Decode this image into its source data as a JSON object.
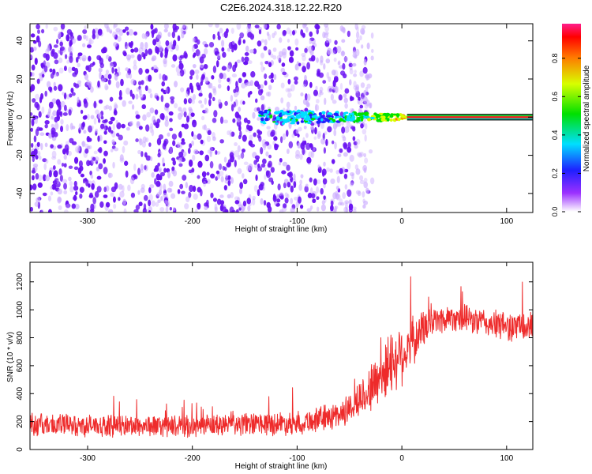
{
  "title": "C2E6.2024.318.12.22.R20",
  "colors": {
    "snr_line": "#ee2b2b",
    "spectrogram_dots": "#6a00ff",
    "frame": "#000000"
  },
  "chart_data": [
    {
      "type": "heatmap",
      "name": "spectrogram",
      "xlabel": "Height of straight line (km)",
      "ylabel": "Frequency (Hz)",
      "xlim": [
        -355,
        125
      ],
      "ylim": [
        -50,
        49
      ],
      "xticks": [
        -300,
        -200,
        -100,
        0,
        100
      ],
      "yticks": [
        -40,
        -20,
        0,
        20,
        40
      ],
      "colorbar": {
        "label": "Normalized spectral amplitude",
        "range": [
          0,
          0.98
        ],
        "ticks": [
          0.0,
          0.2,
          0.4,
          0.6,
          0.8
        ]
      },
      "features": {
        "noise_region_km": [
          -355,
          -40
        ],
        "signal_onset_km": -135,
        "carrier_frequency_hz": 0,
        "carrier_band_start_km": 5,
        "carrier_band_halfwidth_hz": 1.5
      }
    },
    {
      "type": "line",
      "name": "snr",
      "xlabel": "Height of straight line (km)",
      "ylabel": "SNR (10 * v/v)",
      "xlim": [
        -355,
        125
      ],
      "ylim": [
        0,
        1340
      ],
      "xticks": [
        -300,
        -200,
        -100,
        0,
        100
      ],
      "yticks": [
        0,
        200,
        400,
        600,
        800,
        1000,
        1200
      ],
      "series": [
        {
          "name": "SNR",
          "x": [
            -355,
            -300,
            -250,
            -200,
            -150,
            -100,
            -80,
            -60,
            -50,
            -40,
            -30,
            -20,
            -10,
            0,
            10,
            20,
            30,
            50,
            70,
            90,
            110,
            125
          ],
          "y": [
            180,
            170,
            170,
            165,
            180,
            190,
            215,
            250,
            290,
            360,
            440,
            530,
            630,
            690,
            760,
            860,
            920,
            950,
            920,
            890,
            880,
            870
          ],
          "noise_halfwidth": [
            90,
            85,
            85,
            85,
            90,
            95,
            100,
            110,
            120,
            150,
            190,
            230,
            260,
            250,
            200,
            150,
            120,
            110,
            110,
            115,
            120,
            125
          ]
        }
      ]
    }
  ]
}
